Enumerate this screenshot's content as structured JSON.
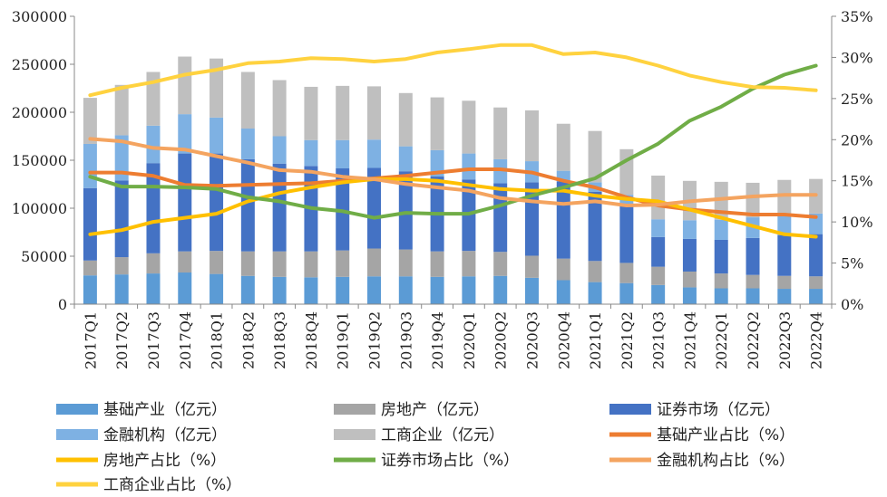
{
  "chart_data": {
    "type": "bar+line",
    "categories": [
      "2017Q1",
      "2017Q2",
      "2017Q3",
      "2017Q4",
      "2018Q1",
      "2018Q2",
      "2018Q3",
      "2018Q4",
      "2019Q1",
      "2019Q2",
      "2019Q3",
      "2019Q4",
      "2020Q1",
      "2020Q2",
      "2020Q3",
      "2020Q4",
      "2021Q1",
      "2021Q2",
      "2021Q3",
      "2021Q4",
      "2022Q1",
      "2022Q2",
      "2022Q3",
      "2022Q4"
    ],
    "y_left": {
      "min": 0,
      "max": 300000,
      "ticks": [
        "0",
        "50000",
        "100000",
        "150000",
        "200000",
        "250000",
        "300000"
      ]
    },
    "y_right": {
      "min": 0,
      "max": 35,
      "ticks": [
        "0%",
        "5%",
        "10%",
        "15%",
        "20%",
        "25%",
        "30%",
        "35%"
      ]
    },
    "bar_series": [
      {
        "name": "基础产业（亿元）",
        "color": "#5b9bd5",
        "values": [
          30000,
          31000,
          32000,
          33000,
          31500,
          29500,
          28500,
          28000,
          28500,
          29000,
          29000,
          28500,
          29000,
          29500,
          27500,
          25000,
          23000,
          22000,
          20000,
          17500,
          16500,
          16500,
          16000,
          16000
        ]
      },
      {
        "name": "房地产（亿元）",
        "color": "#a5a5a5",
        "values": [
          15500,
          18000,
          21000,
          22000,
          24000,
          25500,
          26500,
          27000,
          27500,
          29000,
          28000,
          26500,
          26500,
          25000,
          23000,
          22500,
          22000,
          21000,
          19000,
          16500,
          15500,
          14000,
          13500,
          13000
        ]
      },
      {
        "name": "证券市场（亿元）",
        "color": "#4472c4",
        "values": [
          75500,
          80000,
          94000,
          102000,
          101500,
          96000,
          91500,
          89000,
          85500,
          84000,
          81500,
          78000,
          74500,
          71500,
          76500,
          80500,
          72000,
          61000,
          31000,
          34000,
          35000,
          38500,
          42500,
          44000
        ]
      },
      {
        "name": "金融机构（亿元）",
        "color": "#7eb1e3",
        "values": [
          46000,
          47000,
          39000,
          41000,
          37500,
          32000,
          28500,
          27000,
          29500,
          29500,
          26000,
          27500,
          27000,
          25000,
          22000,
          11000,
          10000,
          10000,
          18500,
          19500,
          21000,
          21500,
          22000,
          21500
        ]
      },
      {
        "name": "工商企业（亿元）",
        "color": "#bfbfbf",
        "values": [
          48000,
          52500,
          56000,
          60000,
          61500,
          59000,
          58500,
          55500,
          56500,
          55500,
          55500,
          55000,
          55000,
          54000,
          53000,
          49000,
          53500,
          47500,
          45500,
          41000,
          39500,
          36000,
          35500,
          36000
        ]
      }
    ],
    "line_series": [
      {
        "name": "基础产业占比（%）",
        "color": "#ed7d31",
        "values": [
          16,
          16,
          15.6,
          14.5,
          14.4,
          14.5,
          14.6,
          14.7,
          15,
          15.3,
          15.6,
          16,
          16.4,
          16.4,
          16,
          15,
          14.2,
          13,
          12,
          11.5,
          11.2,
          10.9,
          10.9,
          10.6
        ]
      },
      {
        "name": "房地产占比（%）",
        "color": "#ffc000",
        "values": [
          8.5,
          9,
          10,
          10.5,
          11,
          12.5,
          13.5,
          14.2,
          14.8,
          15.2,
          15.2,
          15,
          14.5,
          14,
          13.8,
          13.8,
          13.2,
          12.8,
          12.5,
          11.5,
          10.5,
          9.5,
          8.5,
          8.2
        ]
      },
      {
        "name": "证券市场占比（%）",
        "color": "#70ad47",
        "values": [
          15.5,
          14.3,
          14.3,
          14.2,
          14,
          13,
          12.5,
          11.7,
          11.3,
          10.5,
          11.1,
          11,
          11,
          12,
          13.2,
          14.2,
          15.3,
          17.5,
          19.5,
          22.3,
          24,
          26.2,
          27.9,
          29
        ]
      },
      {
        "name": "金融机构占比（%）",
        "color": "#f4a460",
        "values": [
          20.1,
          19.8,
          19,
          18.8,
          18,
          17.2,
          16.3,
          16.1,
          15.5,
          15.2,
          14.6,
          14.2,
          13.8,
          12.9,
          12.5,
          12.2,
          12.5,
          12,
          12.1,
          12.5,
          12.8,
          13.1,
          13.3,
          13.3
        ]
      },
      {
        "name": "工商企业占比（%）",
        "color": "#ffd23f",
        "values": [
          25.4,
          26.3,
          27,
          27.9,
          28.5,
          29.3,
          29.5,
          29.9,
          29.8,
          29.5,
          29.8,
          30.6,
          31,
          31.5,
          31.5,
          30.4,
          30.6,
          30,
          29,
          27.8,
          27,
          26.4,
          26.3,
          26
        ]
      }
    ]
  }
}
